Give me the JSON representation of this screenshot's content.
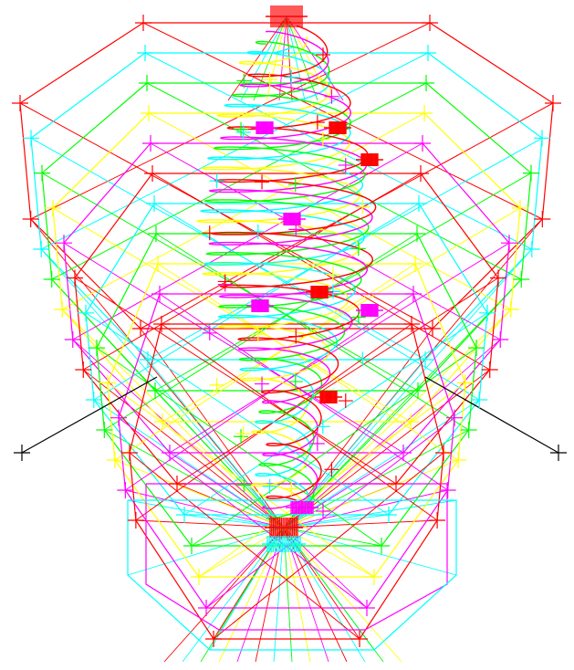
{
  "colors": {
    "background": "#ffffff",
    "red": "#ff0000",
    "cyan": "#00ffff",
    "green": "#00ff00",
    "yellow": "#ffff00",
    "magenta": "#ff00ff",
    "black": "#000000"
  },
  "palette_order": [
    "red",
    "cyan",
    "green",
    "yellow",
    "magenta"
  ],
  "shape": {
    "octagon_rings": 11,
    "helix_loops": 9,
    "marker": "plus-cross"
  }
}
